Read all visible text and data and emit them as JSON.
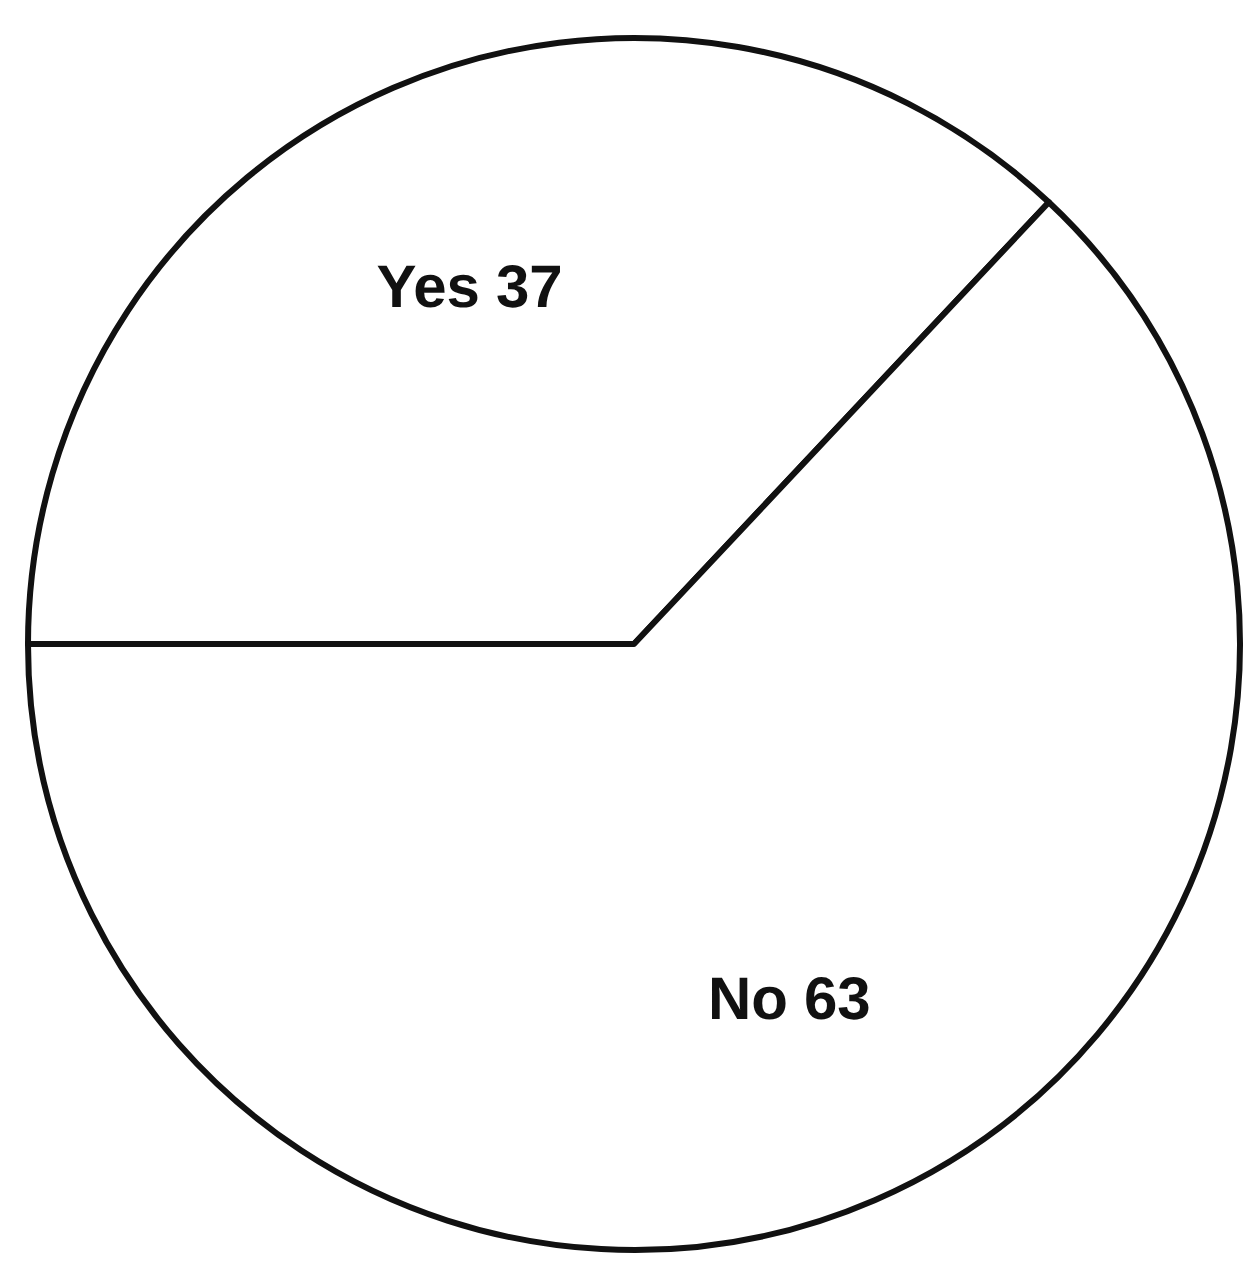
{
  "chart_data": {
    "type": "pie",
    "categories": [
      "Yes",
      "No"
    ],
    "values": [
      37,
      63
    ],
    "colors": [
      "#ffffff",
      "#ffffff"
    ],
    "data_labels": true
  }
}
